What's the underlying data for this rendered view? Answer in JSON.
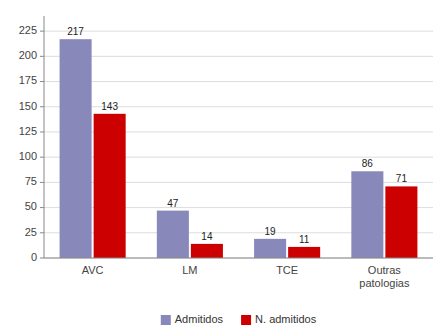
{
  "chart_data": {
    "type": "bar",
    "categories": [
      "AVC",
      "LM",
      "TCE",
      "Outras\npatologias"
    ],
    "series": [
      {
        "name": "Admitidos",
        "color": "#8888BB",
        "values": [
          217,
          47,
          19,
          86
        ]
      },
      {
        "name": "N. admitidos",
        "color": "#CC0000",
        "values": [
          143,
          14,
          11,
          71
        ]
      }
    ],
    "ylim": [
      0,
      240
    ],
    "yticks": [
      0,
      25,
      50,
      75,
      100,
      125,
      150,
      175,
      200,
      225
    ],
    "grid": true,
    "data_labels": true,
    "legend": "bottom"
  }
}
